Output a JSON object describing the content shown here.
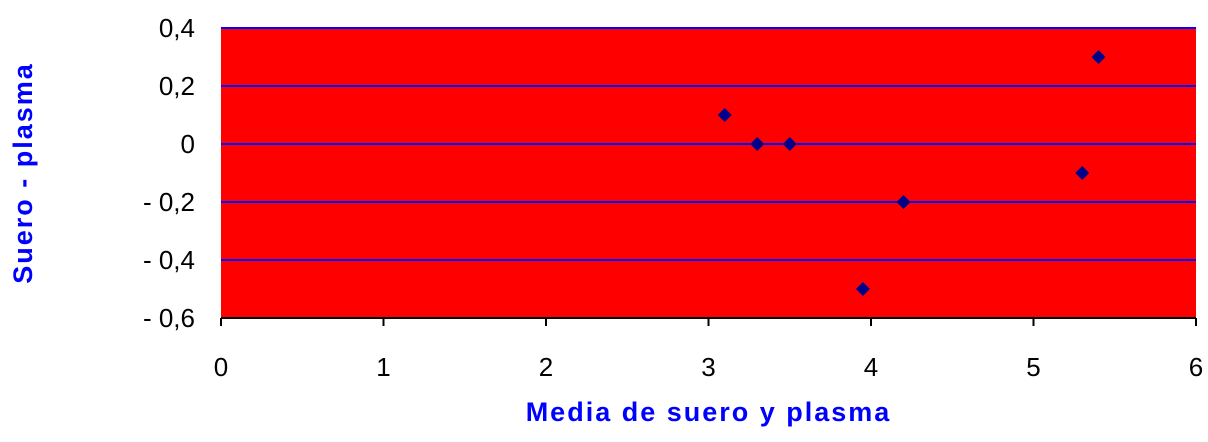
{
  "chart_data": {
    "type": "scatter",
    "xlabel": "Media de suero y plasma",
    "ylabel": "Suero - plasma",
    "xlim": [
      0,
      6
    ],
    "ylim": [
      -0.6,
      0.4
    ],
    "x_ticks": [
      0,
      1,
      2,
      3,
      4,
      5,
      6
    ],
    "x_tick_labels": [
      "0",
      "1",
      "2",
      "3",
      "4",
      "5",
      "6"
    ],
    "y_ticks": [
      0.4,
      0.2,
      0,
      -0.2,
      -0.4,
      -0.6
    ],
    "y_tick_labels": [
      "0,4",
      "0,2",
      "0",
      "- 0,2",
      "- 0,4",
      "- 0,6"
    ],
    "grid": true,
    "colors": {
      "plot_background": "#ff0000",
      "gridlines": "#0000ff",
      "markers": "#00008b",
      "axis_titles": "#0000ff",
      "axis_lines": "#000000"
    },
    "marker": "diamond",
    "points": [
      {
        "x": 3.1,
        "y": 0.1
      },
      {
        "x": 3.3,
        "y": 0.0
      },
      {
        "x": 3.5,
        "y": 0.0
      },
      {
        "x": 3.95,
        "y": -0.5
      },
      {
        "x": 4.2,
        "y": -0.2
      },
      {
        "x": 5.3,
        "y": -0.1
      },
      {
        "x": 5.4,
        "y": 0.3
      }
    ]
  }
}
